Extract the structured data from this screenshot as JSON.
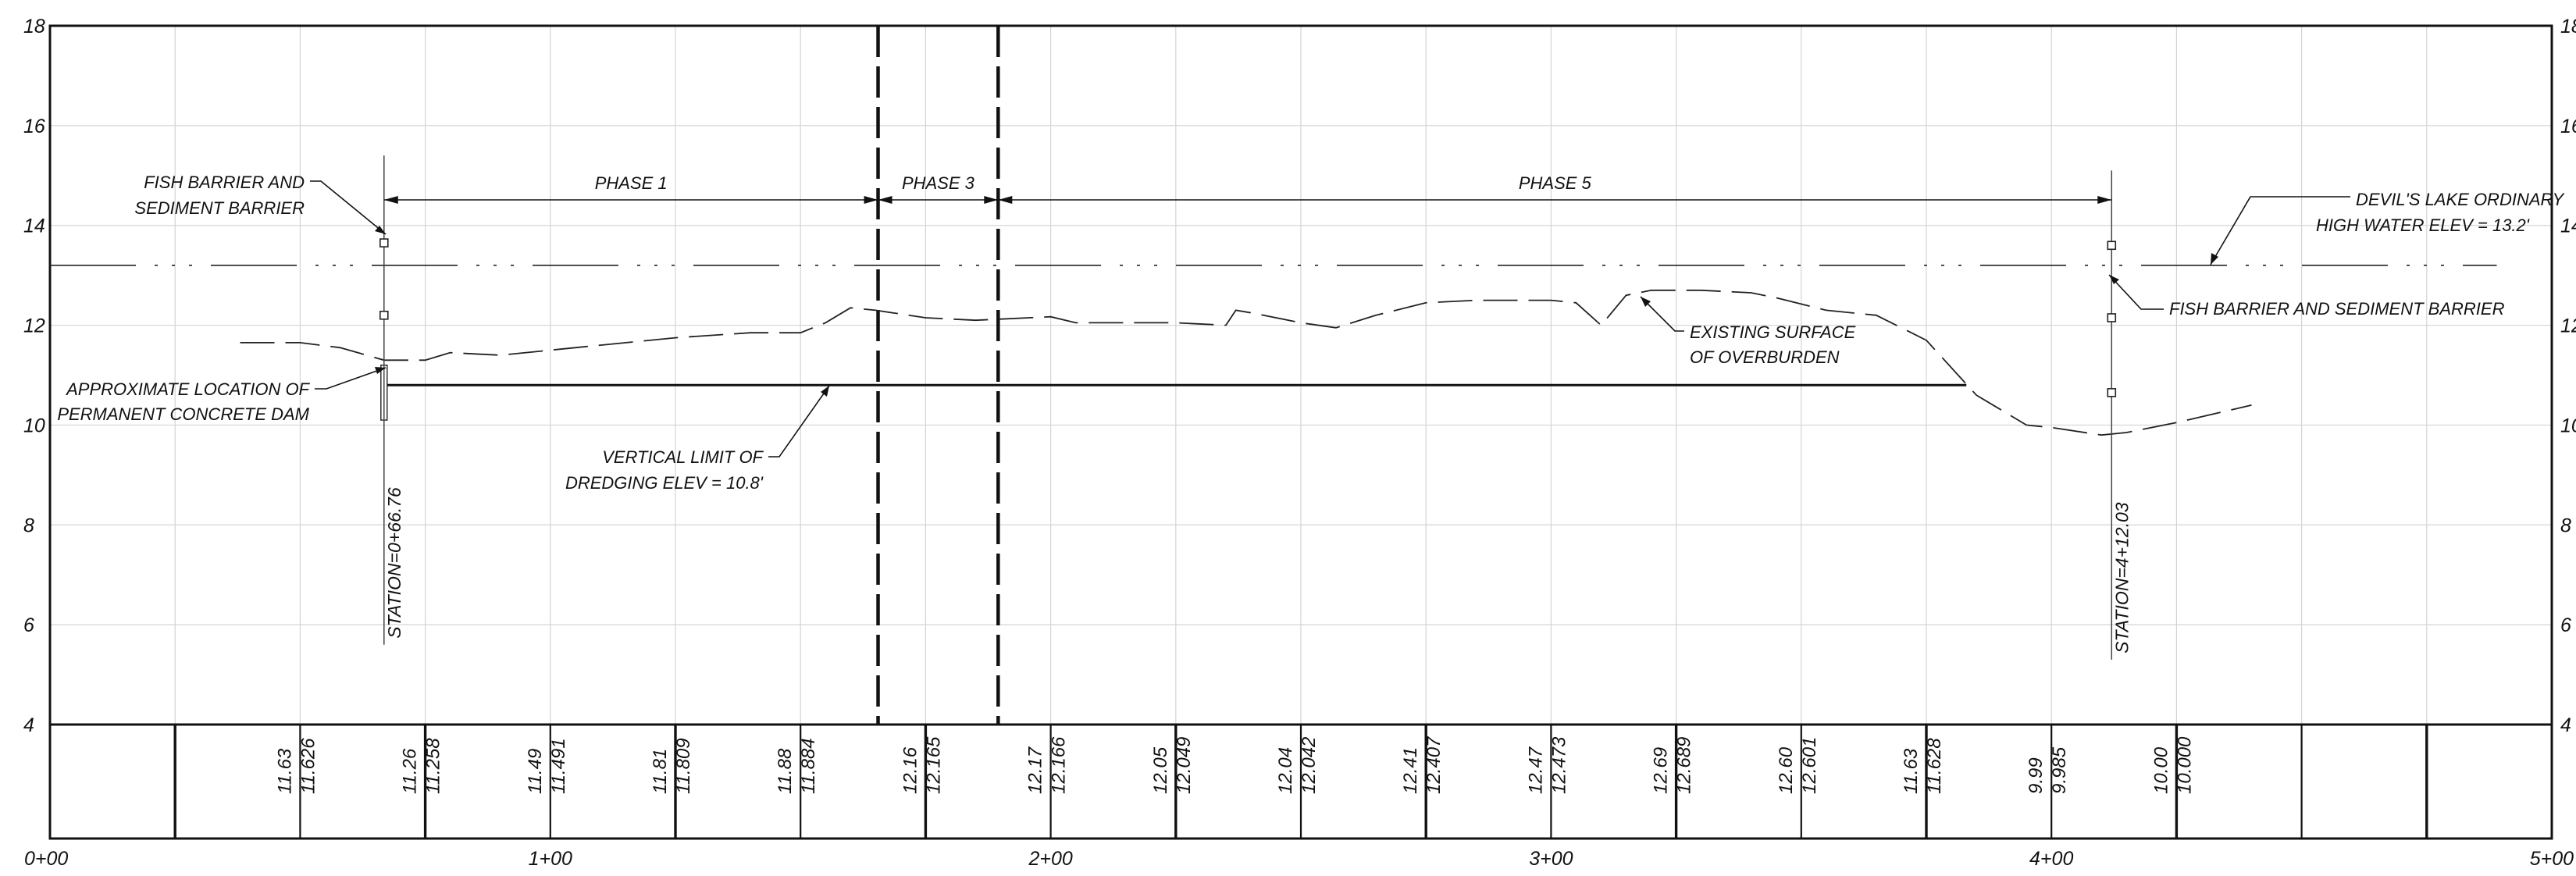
{
  "sheet": {
    "type": "profile",
    "y_axis": {
      "min": 4,
      "max": 18,
      "tick_labels": [
        "4",
        "6",
        "8",
        "10",
        "12",
        "14",
        "16",
        "18"
      ],
      "left_labels_shown": [
        "4",
        "6",
        "8",
        "10",
        "12",
        "14",
        "16",
        "18"
      ],
      "right_labels_shown": [
        "4",
        "6",
        "8",
        "10",
        "12",
        "14",
        "16",
        "18"
      ]
    },
    "x_axis": {
      "min_station": 0,
      "max_station": 500,
      "tick_labels": [
        "0+00",
        "1+00",
        "2+00",
        "3+00",
        "4+00",
        "5+00"
      ],
      "grid_interval": 25
    },
    "elevation_table": [
      {
        "station": 50,
        "proposed": "11.63",
        "existing": "11.626"
      },
      {
        "station": 75,
        "proposed": "11.26",
        "existing": "11.258"
      },
      {
        "station": 100,
        "proposed": "11.49",
        "existing": "11.491"
      },
      {
        "station": 125,
        "proposed": "11.81",
        "existing": "11.809"
      },
      {
        "station": 150,
        "proposed": "11.88",
        "existing": "11.884"
      },
      {
        "station": 175,
        "proposed": "12.16",
        "existing": "12.165"
      },
      {
        "station": 200,
        "proposed": "12.17",
        "existing": "12.166"
      },
      {
        "station": 225,
        "proposed": "12.05",
        "existing": "12.049"
      },
      {
        "station": 250,
        "proposed": "12.04",
        "existing": "12.042"
      },
      {
        "station": 275,
        "proposed": "12.41",
        "existing": "12.407"
      },
      {
        "station": 300,
        "proposed": "12.47",
        "existing": "12.473"
      },
      {
        "station": 325,
        "proposed": "12.69",
        "existing": "12.689"
      },
      {
        "station": 350,
        "proposed": "12.60",
        "existing": "12.601"
      },
      {
        "station": 375,
        "proposed": "11.63",
        "existing": "11.628"
      },
      {
        "station": 400,
        "proposed": "9.99",
        "existing": "9.985"
      },
      {
        "station": 425,
        "proposed": "10.00",
        "existing": "10.000"
      }
    ],
    "phases": [
      {
        "label": "PHASE 1",
        "start": 66.76,
        "end": 165.5
      },
      {
        "label": "PHASE 3",
        "start": 165.5,
        "end": 189.5
      },
      {
        "label": "PHASE 5",
        "start": 189.5,
        "end": 412.03
      }
    ],
    "phase_boundaries": [
      165.5,
      189.5
    ],
    "stations": [
      {
        "label": "STATION=0+66.76",
        "station": 66.76,
        "top_elev": 15.4,
        "bottom_elev": 5.6
      },
      {
        "label": "STATION=4+12.03",
        "station": 412.03,
        "top_elev": 15.1,
        "bottom_elev": 5.3
      }
    ],
    "ohw": {
      "elevation": 13.2,
      "start": 0,
      "end": 489
    },
    "dredge_limit": {
      "elevation": 10.8,
      "start": 67,
      "end": 383
    },
    "existing_surface": {
      "x": [
        38,
        50,
        58,
        66.76,
        75,
        80,
        90,
        100,
        110,
        125,
        140,
        150,
        155,
        160,
        165,
        175,
        185,
        200,
        205,
        210,
        225,
        235,
        237,
        240,
        250,
        257,
        265,
        275,
        285,
        300,
        305,
        310,
        315,
        320,
        330,
        340,
        345,
        355,
        365,
        375,
        385,
        395,
        400,
        410,
        415,
        425,
        440
      ],
      "y": [
        11.65,
        11.65,
        11.55,
        11.3,
        11.3,
        11.45,
        11.4,
        11.5,
        11.6,
        11.75,
        11.85,
        11.85,
        12.05,
        12.35,
        12.3,
        12.15,
        12.1,
        12.17,
        12.05,
        12.05,
        12.05,
        12.0,
        12.3,
        12.25,
        12.05,
        11.95,
        12.2,
        12.45,
        12.5,
        12.5,
        12.45,
        12.0,
        12.6,
        12.7,
        12.7,
        12.65,
        12.55,
        12.3,
        12.2,
        11.7,
        10.6,
        10.0,
        9.95,
        9.8,
        9.85,
        10.05,
        10.4
      ]
    },
    "fish_barrier_markers": [
      {
        "station": 66.76,
        "elev": 13.65
      },
      {
        "station": 66.76,
        "elev": 12.2
      },
      {
        "station": 412.03,
        "elev": 13.6
      },
      {
        "station": 412.03,
        "elev": 12.15
      },
      {
        "station": 412.03,
        "elev": 10.65
      }
    ],
    "annotations": {
      "fish_barrier_left": [
        "FISH BARRIER AND",
        "SEDIMENT BARRIER"
      ],
      "ohw_note": [
        "DEVIL'S LAKE ORDINARY",
        "HIGH WATER ELEV = 13.2'"
      ],
      "fish_barrier_right": [
        "FISH BARRIER AND SEDIMENT BARRIER"
      ],
      "existing_surface_note": [
        "EXISTING SURFACE",
        "OF OVERBURDEN"
      ],
      "dam_note": [
        "APPROXIMATE LOCATION OF",
        "PERMANENT CONCRETE DAM"
      ],
      "dredge_note": [
        "VERTICAL LIMIT OF",
        "DREDGING ELEV = 10.8'"
      ]
    }
  }
}
